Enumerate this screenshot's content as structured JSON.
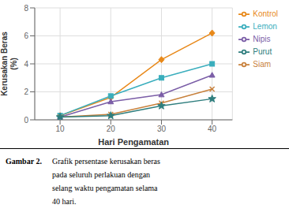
{
  "chart_data": {
    "type": "line",
    "xlabel": "Hari Pengamatan",
    "ylabel": [
      "Kerusakan Beras",
      "(%)"
    ],
    "x": [
      10,
      20,
      30,
      40
    ],
    "series": [
      {
        "name": "Kontrol",
        "color": "#E8891A",
        "marker": "diamond",
        "values": [
          0.3,
          1.6,
          4.3,
          6.2
        ]
      },
      {
        "name": "Lemon",
        "color": "#3AAEBD",
        "marker": "square",
        "values": [
          0.3,
          1.7,
          3.0,
          4.0
        ]
      },
      {
        "name": "Nipis",
        "color": "#7B5EA7",
        "marker": "triangle",
        "values": [
          0.2,
          1.3,
          1.8,
          3.2
        ]
      },
      {
        "name": "Siam",
        "color": "#C8813C",
        "marker": "x",
        "values": [
          0.2,
          0.4,
          1.2,
          2.2
        ]
      },
      {
        "name": "Purut",
        "color": "#2E7E7E",
        "marker": "star",
        "values": [
          0.2,
          0.3,
          1.0,
          1.5
        ]
      }
    ],
    "xlim": [
      5,
      44
    ],
    "xticks": [
      10,
      20,
      30,
      40
    ],
    "ylim": [
      0,
      8
    ],
    "yticks": [
      0,
      2,
      4,
      6,
      8
    ],
    "grid": true,
    "legend": "right",
    "annotations": [
      "Gambar 2.",
      "Grafik persentase kerusakan beras",
      "pada seluruh perlakuan dengan",
      "selang waktu pengamatan selama",
      "40 hari."
    ]
  }
}
